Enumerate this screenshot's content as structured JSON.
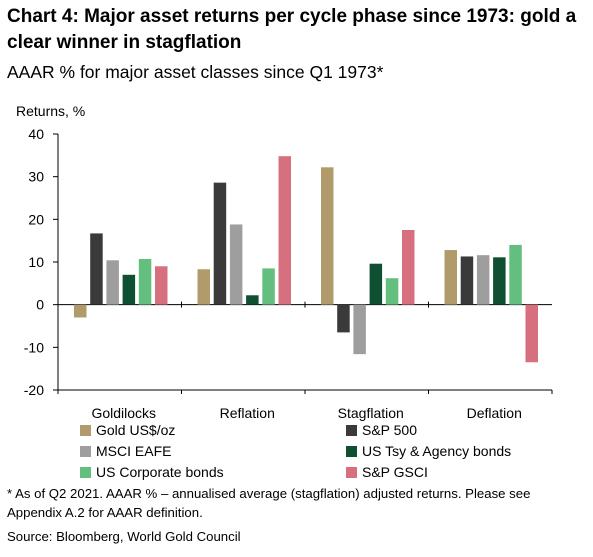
{
  "title": "Chart 4: Major asset returns per cycle phase since 1973: gold a clear winner in stagflation",
  "subtitle": "AAAR % for major asset classes since Q1 1973*",
  "footnote": "* As of Q2 2021. AAAR % – annualised average (stagflation) adjusted returns. Please see Appendix A.2 for AAAR definition.",
  "source": "Source: Bloomberg, World Gold Council",
  "chart_data": {
    "type": "bar",
    "ylabel": "Returns, %",
    "ylim": [
      -20,
      40
    ],
    "yticks": [
      -20,
      -10,
      0,
      10,
      20,
      30,
      40
    ],
    "grid": false,
    "legend_position": "bottom",
    "categories": [
      "Goldilocks",
      "Reflation",
      "Stagflation",
      "Deflation"
    ],
    "series": [
      {
        "name": "Gold US$/oz",
        "color": "#b29b6b",
        "values": [
          -3.0,
          8.3,
          32.2,
          12.8
        ]
      },
      {
        "name": "S&P 500",
        "color": "#3a3a3a",
        "values": [
          16.7,
          28.6,
          -6.5,
          11.3
        ]
      },
      {
        "name": "MSCI EAFE",
        "color": "#9e9e9e",
        "values": [
          10.4,
          18.8,
          -11.6,
          11.6
        ]
      },
      {
        "name": "US Tsy & Agency bonds",
        "color": "#0f4f32",
        "values": [
          7.0,
          2.2,
          9.6,
          11.1
        ]
      },
      {
        "name": "US Corporate bonds",
        "color": "#63bf7e",
        "values": [
          10.7,
          8.5,
          6.2,
          14.0
        ]
      },
      {
        "name": "S&P GSCI",
        "color": "#d6707f",
        "values": [
          9.0,
          34.8,
          17.5,
          -13.5
        ]
      }
    ]
  }
}
